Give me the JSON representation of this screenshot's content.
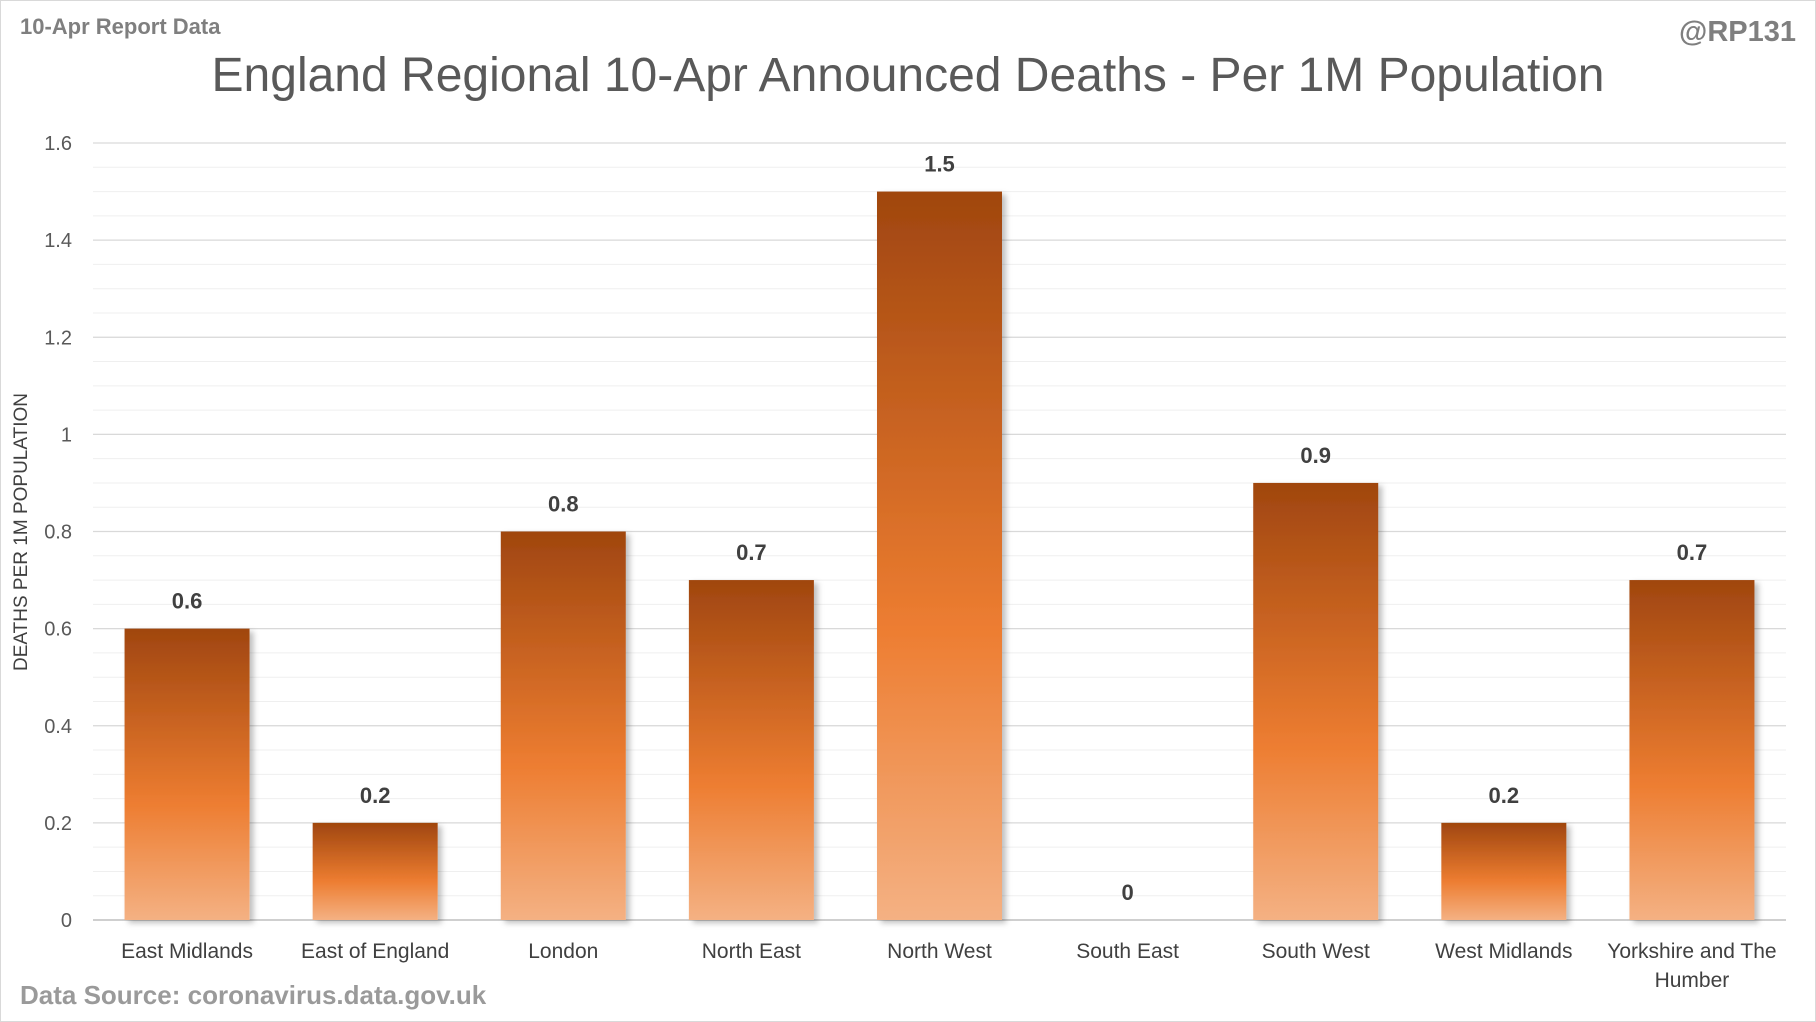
{
  "header": {
    "report_label": "10-Apr Report Data",
    "author": "@RP131"
  },
  "footer": {
    "source": "Data Source: coronavirus.data.gov.uk"
  },
  "colors": {
    "bar_dark": "#a0460f",
    "bar_mid": "#ed7d31",
    "bar_light": "#f4b183",
    "grid": "#d9d9d9"
  },
  "chart_data": {
    "type": "bar",
    "title": "England Regional 10-Apr Announced Deaths - Per 1M Population",
    "xlabel": "",
    "ylabel": "DEATHS PER 1M POPULATION",
    "ylim": [
      0,
      1.6
    ],
    "yticks": [
      0,
      0.2,
      0.4,
      0.6,
      0.8,
      1,
      1.2,
      1.4,
      1.6
    ],
    "grid": true,
    "categories": [
      [
        "East Midlands"
      ],
      [
        "East of England"
      ],
      [
        "London"
      ],
      [
        "North East"
      ],
      [
        "North West"
      ],
      [
        "South East"
      ],
      [
        "South West"
      ],
      [
        "West Midlands"
      ],
      [
        "Yorkshire and The",
        "Humber"
      ]
    ],
    "values": [
      0.6,
      0.2,
      0.8,
      0.7,
      1.5,
      0,
      0.9,
      0.2,
      0.7
    ]
  }
}
